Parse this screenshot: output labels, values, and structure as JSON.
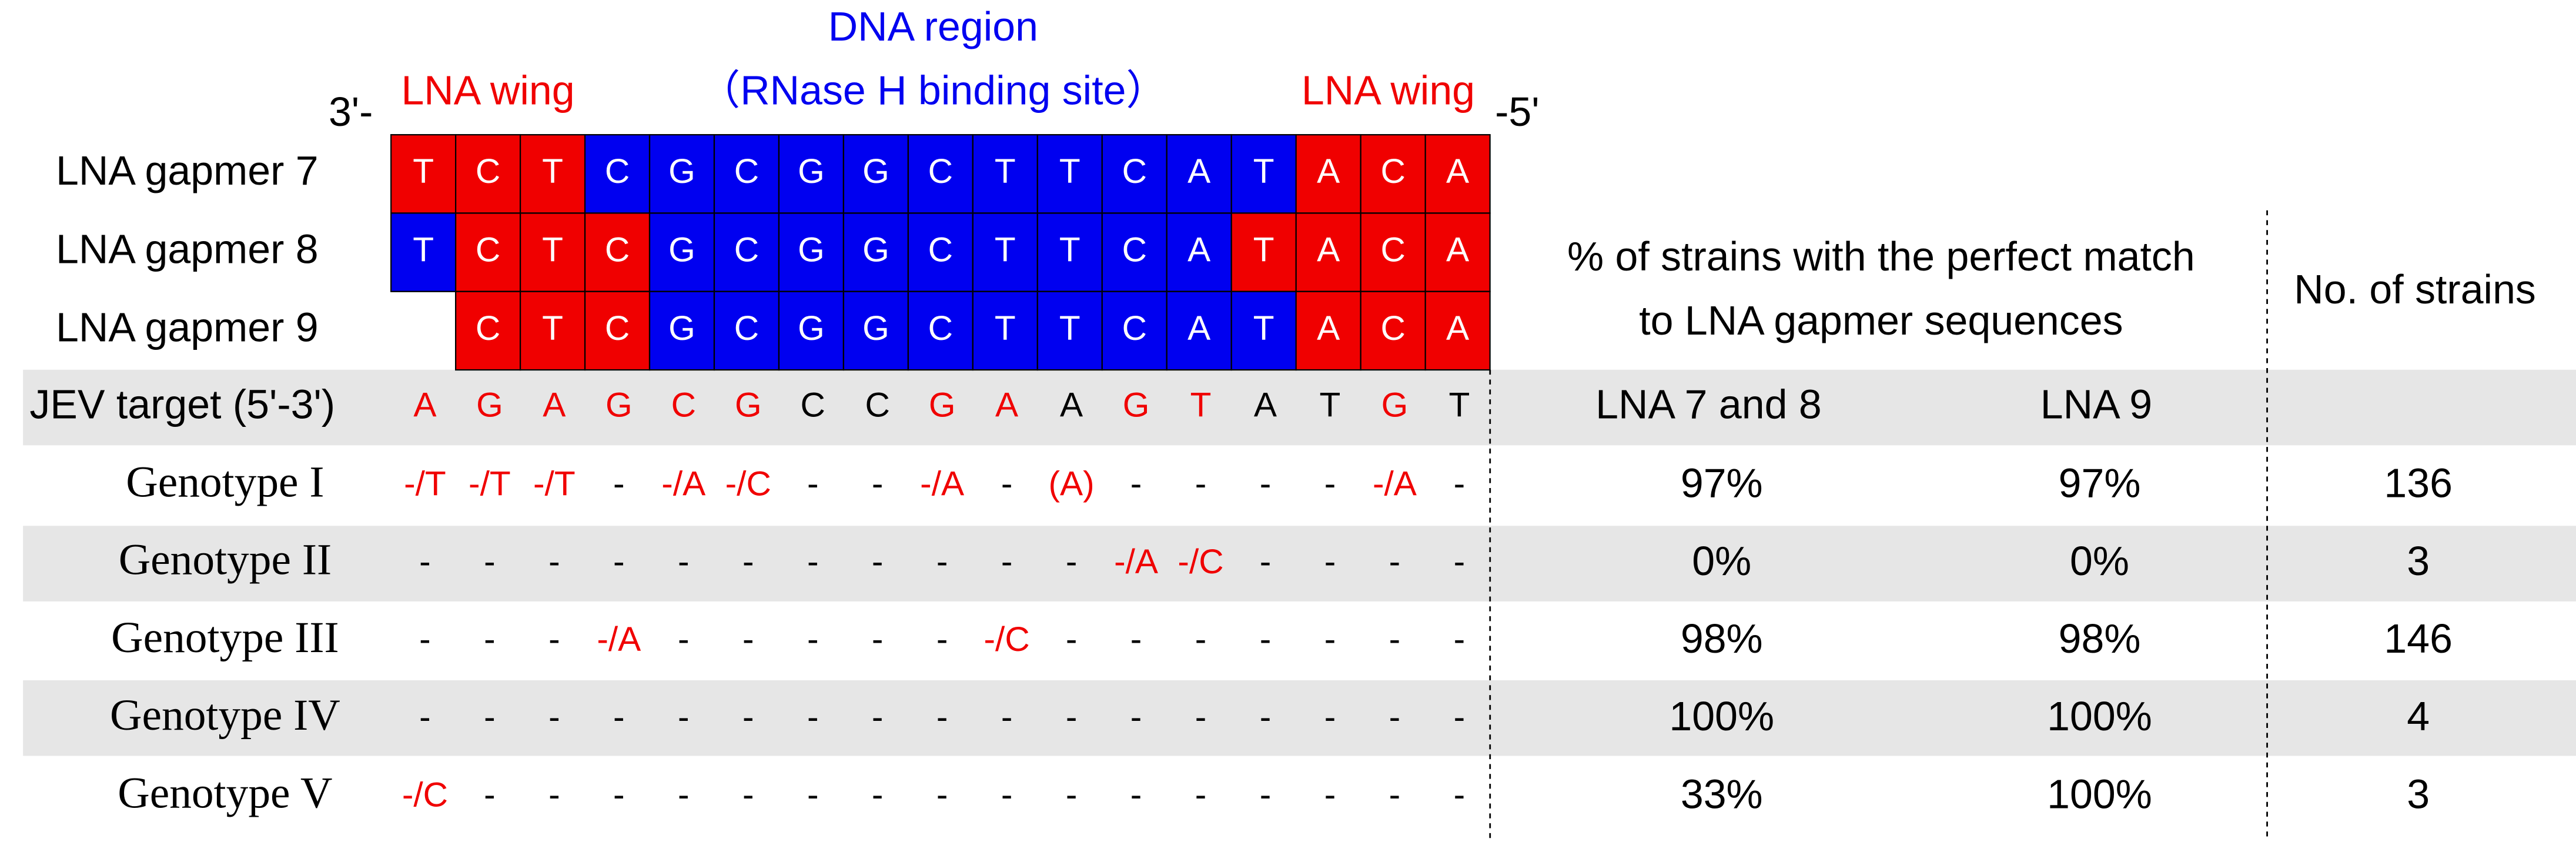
{
  "header": {
    "left_end": "3'-",
    "right_end": "-5'",
    "wing_left": "LNA wing",
    "dna_region": "DNA region",
    "rnase_site": "（RNase H binding site）",
    "wing_right": "LNA wing"
  },
  "gapmers": [
    {
      "label": "LNA gapmer 7",
      "bases": [
        "T",
        "C",
        "T",
        "C",
        "G",
        "C",
        "G",
        "G",
        "C",
        "T",
        "T",
        "C",
        "A",
        "T",
        "A",
        "C",
        "A"
      ],
      "colors": [
        "#f00000",
        "#f00000",
        "#f00000",
        "#0000f0",
        "#0000f0",
        "#0000f0",
        "#0000f0",
        "#0000f0",
        "#0000f0",
        "#0000f0",
        "#0000f0",
        "#0000f0",
        "#0000f0",
        "#0000f0",
        "#f00000",
        "#f00000",
        "#f00000"
      ]
    },
    {
      "label": "LNA gapmer 8",
      "bases": [
        "T",
        "C",
        "T",
        "C",
        "G",
        "C",
        "G",
        "G",
        "C",
        "T",
        "T",
        "C",
        "A",
        "T",
        "A",
        "C",
        "A"
      ],
      "colors": [
        "#0000f0",
        "#f00000",
        "#f00000",
        "#f00000",
        "#0000f0",
        "#0000f0",
        "#0000f0",
        "#0000f0",
        "#0000f0",
        "#0000f0",
        "#0000f0",
        "#0000f0",
        "#0000f0",
        "#f00000",
        "#f00000",
        "#f00000",
        "#f00000"
      ]
    },
    {
      "label": "LNA gapmer 9",
      "bases": [
        null,
        "C",
        "T",
        "C",
        "G",
        "C",
        "G",
        "G",
        "C",
        "T",
        "T",
        "C",
        "A",
        "T",
        "A",
        "C",
        "A"
      ],
      "colors": [
        null,
        "#f00000",
        "#f00000",
        "#f00000",
        "#0000f0",
        "#0000f0",
        "#0000f0",
        "#0000f0",
        "#0000f0",
        "#0000f0",
        "#0000f0",
        "#0000f0",
        "#0000f0",
        "#0000f0",
        "#f00000",
        "#f00000",
        "#f00000"
      ]
    }
  ],
  "target": {
    "label": "JEV target (5'-3')",
    "bases": [
      "A",
      "G",
      "A",
      "G",
      "C",
      "G",
      "C",
      "C",
      "G",
      "A",
      "A",
      "G",
      "T",
      "A",
      "T",
      "G",
      "T"
    ],
    "colors": [
      "#f00000",
      "#f00000",
      "#f00000",
      "#f00000",
      "#f00000",
      "#f00000",
      "#000000",
      "#000000",
      "#f00000",
      "#f00000",
      "#000000",
      "#f00000",
      "#f00000",
      "#000000",
      "#000000",
      "#f00000",
      "#000000"
    ]
  },
  "table": {
    "match_header": [
      "% of strains with the perfect match",
      "to LNA gapmer sequences"
    ],
    "strains_header": "No. of strains",
    "col_lna78": "LNA 7 and 8",
    "col_lna9": "LNA 9"
  },
  "genotypes": [
    {
      "label": "Genotype I",
      "marks": [
        "-/T",
        "-/T",
        "-/T",
        "-",
        "-/A",
        "-/C",
        "-",
        "-",
        "-/A",
        "-",
        "(A)",
        "-",
        "-",
        "-",
        "-",
        "-/A",
        "-"
      ],
      "lna78": "97%",
      "lna9": "97%",
      "strains": "136"
    },
    {
      "label": "Genotype II",
      "marks": [
        "-",
        "-",
        "-",
        "-",
        "-",
        "-",
        "-",
        "-",
        "-",
        "-",
        "-",
        "-/A",
        "-/C",
        "-",
        "-",
        "-",
        "-"
      ],
      "lna78": "0%",
      "lna9": "0%",
      "strains": "3"
    },
    {
      "label": "Genotype III",
      "marks": [
        "-",
        "-",
        "-",
        "-/A",
        "-",
        "-",
        "-",
        "-",
        "-",
        "-/C",
        "-",
        "-",
        "-",
        "-",
        "-",
        "-",
        "-"
      ],
      "lna78": "98%",
      "lna9": "98%",
      "strains": "146"
    },
    {
      "label": "Genotype IV",
      "marks": [
        "-",
        "-",
        "-",
        "-",
        "-",
        "-",
        "-",
        "-",
        "-",
        "-",
        "-",
        "-",
        "-",
        "-",
        "-",
        "-",
        "-"
      ],
      "lna78": "100%",
      "lna9": "100%",
      "strains": "4"
    },
    {
      "label": "Genotype V",
      "marks": [
        "-/C",
        "-",
        "-",
        "-",
        "-",
        "-",
        "-",
        "-",
        "-",
        "-",
        "-",
        "-",
        "-",
        "-",
        "-",
        "-",
        "-"
      ],
      "lna78": "33%",
      "lna9": "100%",
      "strains": "3"
    }
  ]
}
